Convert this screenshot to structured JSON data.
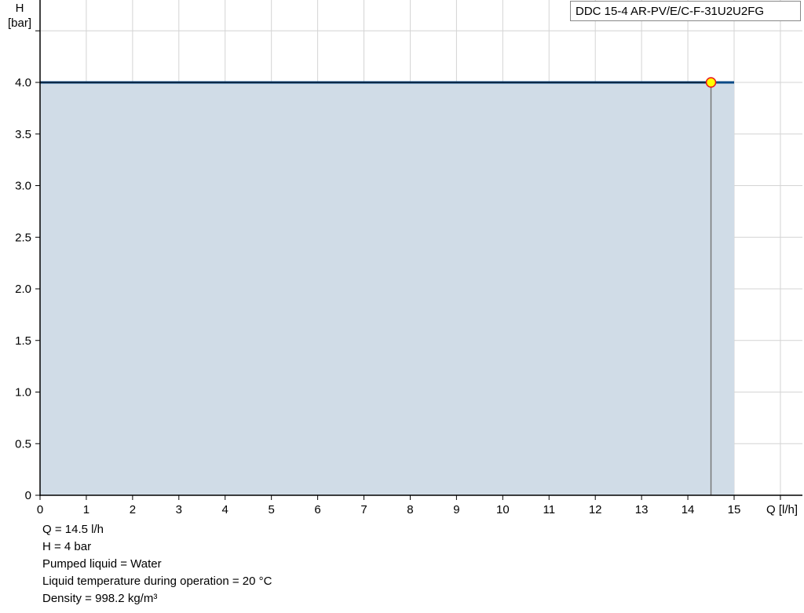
{
  "chart_data": {
    "type": "area",
    "title": "",
    "xlabel": "Q [l/h]",
    "ylabel_line1": "H",
    "ylabel_line2": "[bar]",
    "xlim": [
      0,
      16
    ],
    "ylim": [
      0,
      4.5
    ],
    "x_ticks": [
      "0",
      "1",
      "2",
      "3",
      "4",
      "5",
      "6",
      "7",
      "8",
      "9",
      "10",
      "11",
      "12",
      "13",
      "14",
      "15"
    ],
    "y_ticks": [
      "0",
      "0.5",
      "1.0",
      "1.5",
      "2.0",
      "2.5",
      "3.0",
      "3.5",
      "4.0"
    ],
    "grid": true,
    "legend": "top-right",
    "series": [
      {
        "name": "DDC 15-4 AR-PV/E/C-F-31U2U2FG",
        "x": [
          0,
          15
        ],
        "y": [
          4.0,
          4.0
        ],
        "color": "#0b4a86",
        "fill": "#d0dce7"
      }
    ],
    "operating_point": {
      "x": 14.5,
      "y": 4.0,
      "fill": "#ffff00",
      "stroke": "#e8141a"
    }
  },
  "info": {
    "q": "Q = 14.5 l/h",
    "h": "H = 4 bar",
    "liquid": "Pumped liquid = Water",
    "temperature": "Liquid temperature during operation = 20 °C",
    "density": "Density = 998.2 kg/m³"
  }
}
